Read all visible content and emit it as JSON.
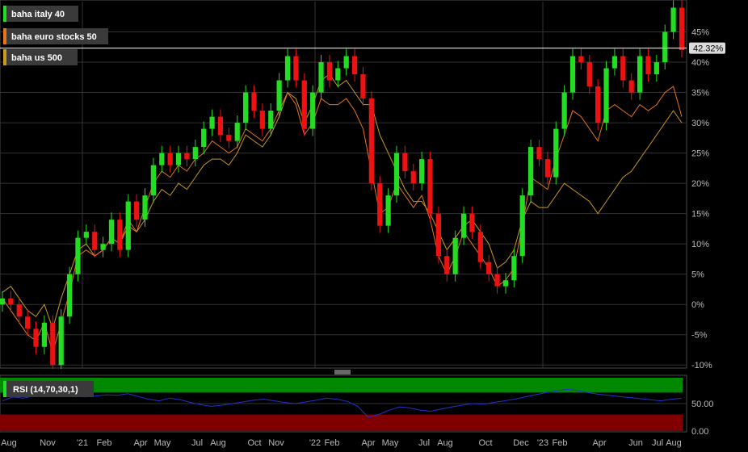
{
  "chart_data": {
    "type": "line",
    "main": {
      "y_unit": "%",
      "ylim": [
        -10.5,
        50
      ],
      "yticks": [
        45,
        40,
        35,
        30,
        25,
        20,
        15,
        10,
        5,
        0,
        -5,
        -10
      ],
      "ytick_labels": [
        "45%",
        "40%",
        "35%",
        "30%",
        "25%",
        "20%",
        "15%",
        "10%",
        "5%",
        "0%",
        "-5%",
        "-10%"
      ],
      "last_value_label": "42.32%",
      "last_value": 42.32,
      "grid": true,
      "legend_position": "top-left",
      "series": [
        {
          "name": "baha italy 40",
          "style": "candlestick",
          "color_up": "#22dd22",
          "color_down": "#ee1111",
          "values": [
            1,
            0,
            -2,
            -4,
            -7,
            -3,
            -10,
            -2,
            5,
            11,
            12,
            9,
            10,
            14,
            9,
            17,
            14,
            18,
            23,
            25,
            23,
            25,
            24,
            26,
            29,
            31,
            28,
            27,
            30,
            35,
            32,
            29,
            32,
            37,
            41,
            37,
            29,
            35,
            40,
            37,
            39,
            41,
            38,
            34,
            20,
            13,
            18,
            25,
            22,
            20,
            24,
            15,
            8,
            5,
            11,
            15,
            12,
            7,
            5,
            3,
            4,
            8,
            18,
            26,
            24,
            21,
            29,
            35,
            41,
            40,
            36,
            30,
            39,
            41,
            37,
            35,
            41,
            38,
            40,
            45,
            49,
            42
          ]
        },
        {
          "name": "baha euro stocks 50",
          "style": "line",
          "color": "#e8741c",
          "values": [
            1,
            -1,
            -3,
            -5,
            -6,
            -3,
            -8,
            -3,
            2,
            8,
            9,
            8,
            9,
            11,
            10,
            14,
            12,
            16,
            20,
            22,
            21,
            23,
            22,
            24,
            25,
            27,
            26,
            25,
            26,
            29,
            28,
            27,
            29,
            32,
            35,
            33,
            28,
            30,
            34,
            33,
            33,
            34,
            32,
            29,
            22,
            15,
            16,
            20,
            18,
            16,
            18,
            14,
            8,
            5,
            8,
            12,
            10,
            8,
            6,
            3,
            4,
            6,
            13,
            21,
            20,
            19,
            24,
            28,
            32,
            31,
            29,
            27,
            32,
            33,
            32,
            31,
            33,
            32,
            33,
            35,
            36,
            31
          ]
        },
        {
          "name": "baha us 500",
          "style": "line",
          "color": "#c99a1e",
          "values": [
            2,
            3,
            1,
            -1,
            -2,
            0,
            -4,
            1,
            5,
            9,
            10,
            8,
            9,
            11,
            10,
            13,
            12,
            14,
            17,
            19,
            18,
            20,
            19,
            21,
            23,
            24,
            24,
            23,
            25,
            28,
            27,
            26,
            28,
            31,
            35,
            34,
            30,
            33,
            37,
            38,
            36,
            37,
            35,
            33,
            33,
            28,
            25,
            22,
            19,
            17,
            17,
            15,
            12,
            9,
            11,
            13,
            14,
            12,
            10,
            6,
            7,
            9,
            14,
            17,
            16,
            16,
            18,
            20,
            19,
            18,
            17,
            15,
            17,
            19,
            21,
            22,
            24,
            26,
            28,
            30,
            32,
            30
          ]
        }
      ]
    },
    "rsi": {
      "label": "RSI (14,70,30,1)",
      "ylim": [
        0,
        100
      ],
      "yticks": [
        50,
        0
      ],
      "ytick_labels": [
        "50.00",
        "0.00"
      ],
      "overbought": 70,
      "oversold": 30,
      "overbought_color": "#008800",
      "oversold_color": "#800000",
      "line_color": "#2233cc",
      "values": [
        55,
        62,
        60,
        64,
        66,
        68,
        65,
        63,
        62,
        64,
        66,
        65,
        68,
        63,
        58,
        55,
        60,
        57,
        52,
        48,
        45,
        47,
        50,
        53,
        56,
        58,
        55,
        52,
        50,
        53,
        56,
        60,
        58,
        54,
        45,
        25,
        30,
        38,
        44,
        42,
        38,
        36,
        40,
        44,
        47,
        50,
        49,
        52,
        55,
        58,
        62,
        66,
        70,
        73,
        76,
        74,
        70,
        67,
        65,
        63,
        61,
        59,
        57,
        55,
        58,
        60
      ]
    },
    "x_labels": [
      "Aug",
      "Nov",
      "'21",
      "Feb",
      "Apr",
      "May",
      "Jul",
      "Aug",
      "Oct",
      "Nov",
      "'22",
      "Feb",
      "Apr",
      "May",
      "Jul",
      "Aug",
      "Oct",
      "Dec",
      "'23",
      "Feb",
      "Apr",
      "Jun",
      "Jul",
      "Aug"
    ]
  }
}
